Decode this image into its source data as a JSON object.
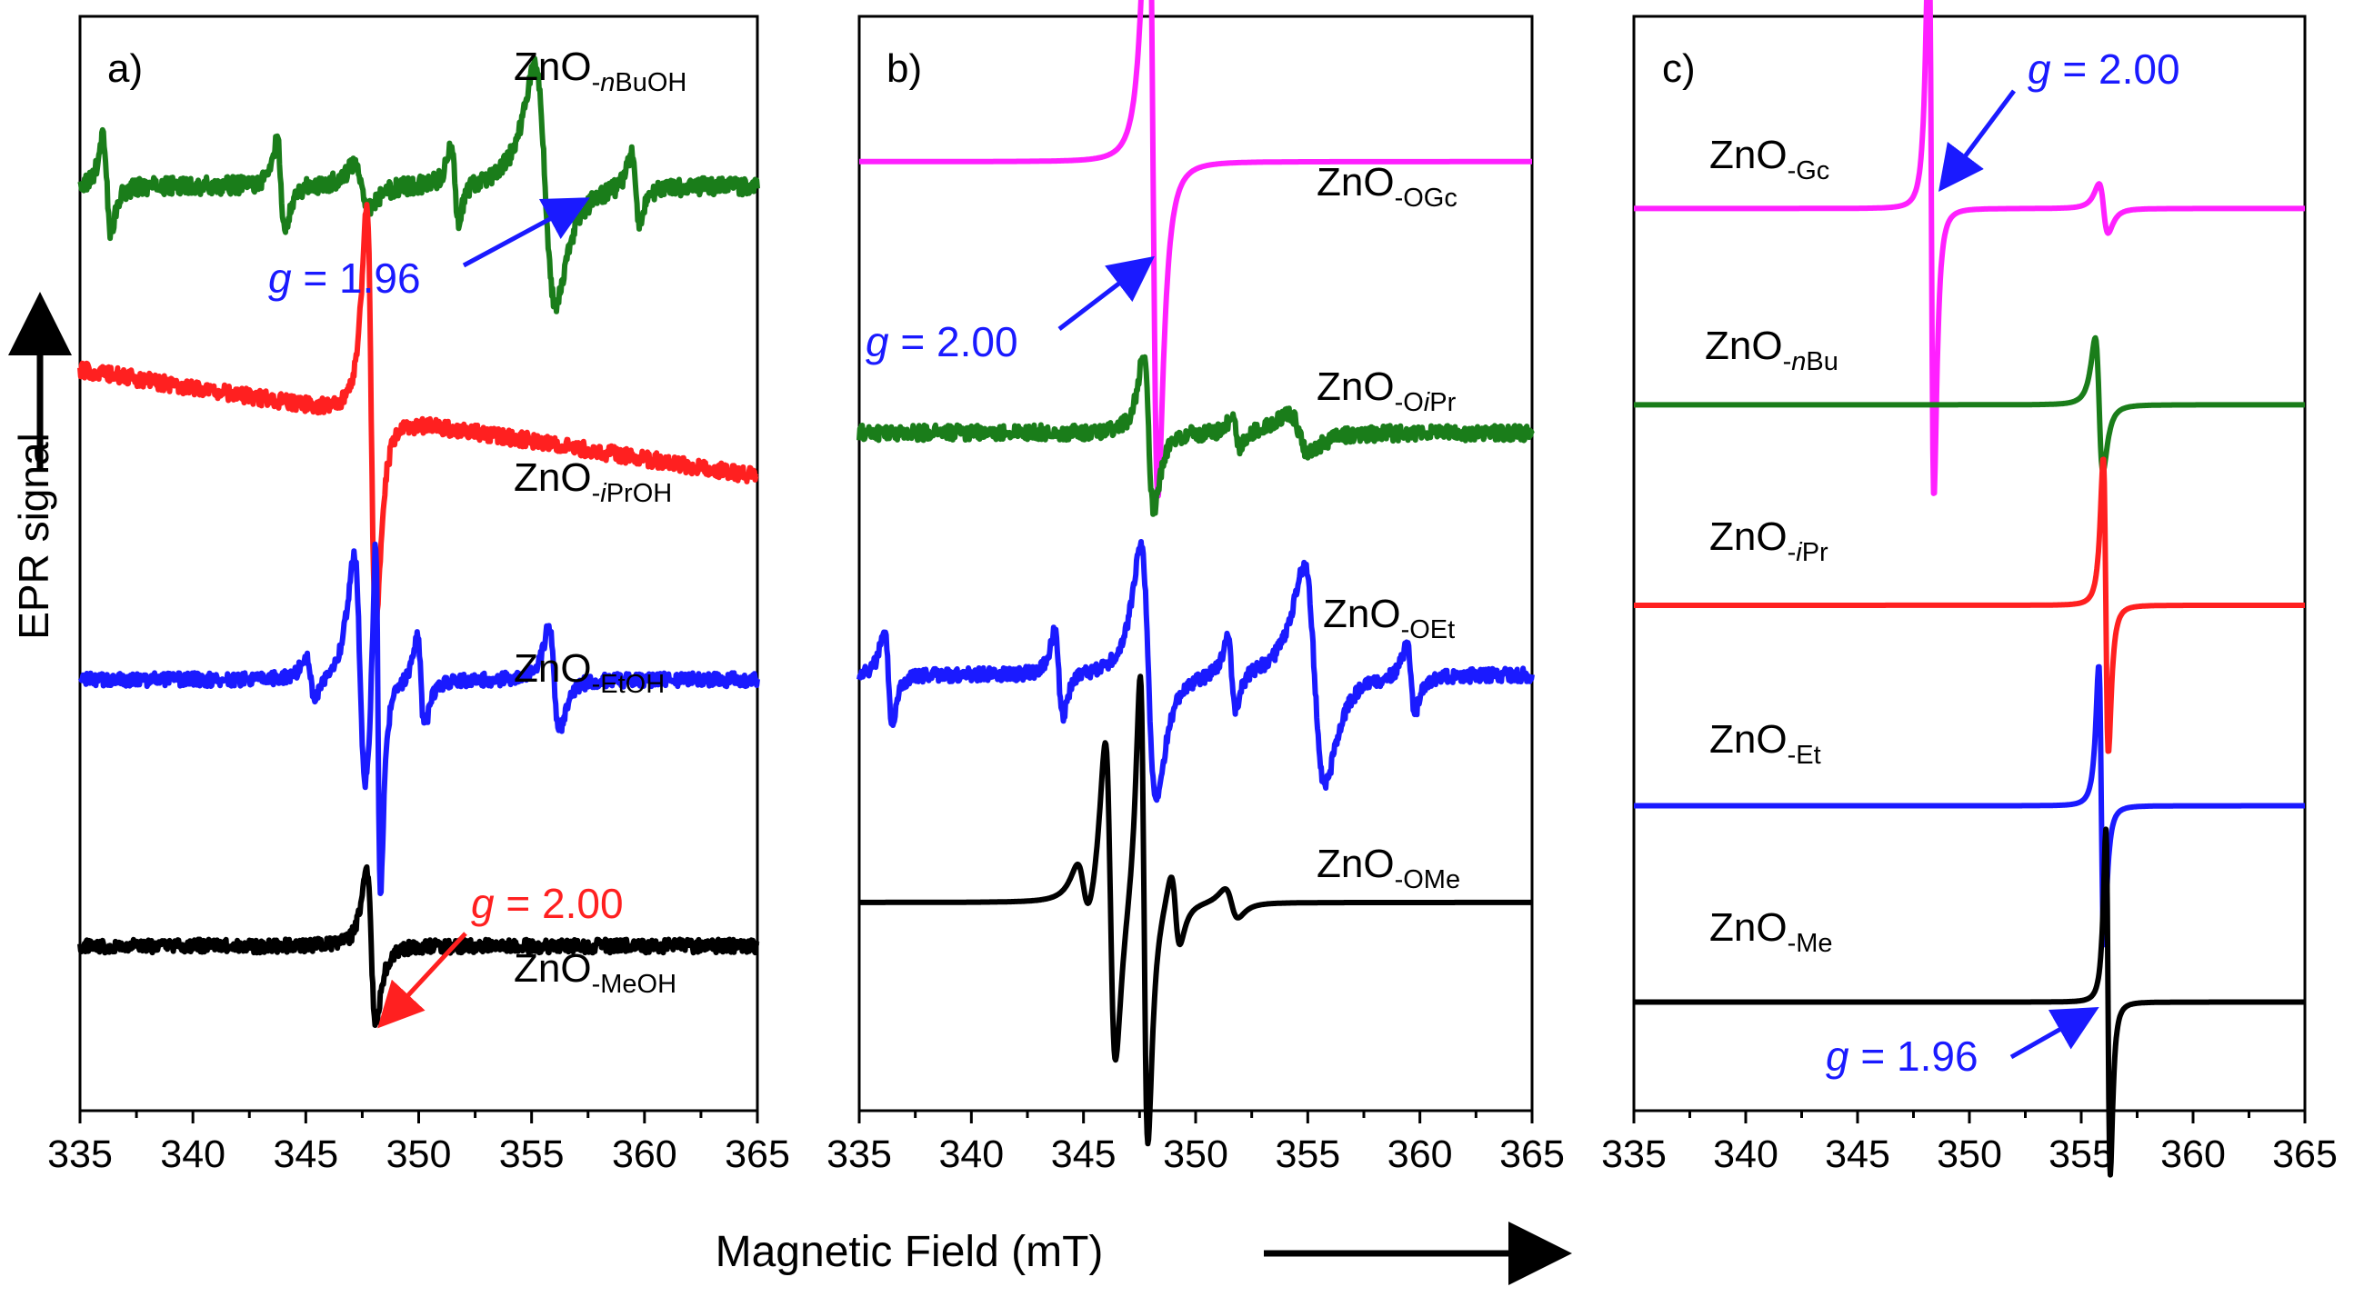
{
  "figure": {
    "ylabel": "EPR signal",
    "xlabel": "Magnetic Field (mT)"
  },
  "chart_data": [
    {
      "type": "line",
      "panel": "a)",
      "xlabel": "Magnetic Field (mT)",
      "ylabel": "EPR signal",
      "xlim": [
        335,
        365
      ],
      "xticks": [
        335,
        340,
        345,
        350,
        355,
        360,
        365
      ],
      "series": [
        {
          "name": "ZnO-nBuOH",
          "label_base": "ZnO",
          "label_sub": "-",
          "label_sub_italic": "n",
          "label_sub_rest": "BuOH",
          "color": "#1a7d1a",
          "baseline": 9.05,
          "noise": 0.09,
          "peaks": [
            {
              "center": 336.2,
              "amp": 0.6,
              "width": 0.3,
              "type": "deriv"
            },
            {
              "center": 343.9,
              "amp": 0.55,
              "width": 0.3,
              "type": "deriv"
            },
            {
              "center": 347.5,
              "amp": 0.25,
              "width": 0.6,
              "type": "deriv"
            },
            {
              "center": 351.6,
              "amp": 0.45,
              "width": 0.3,
              "type": "deriv"
            },
            {
              "center": 355.6,
              "amp": 1.45,
              "width": 0.8,
              "type": "deriv"
            },
            {
              "center": 359.6,
              "amp": 0.45,
              "width": 0.3,
              "type": "deriv"
            }
          ]
        },
        {
          "name": "ZnO-iPrOH",
          "label_base": "ZnO",
          "label_sub": "-",
          "label_sub_italic": "i",
          "label_sub_rest": "PrOH",
          "color": "#ff2020",
          "baseline": 6.6,
          "tilt": -0.55,
          "noise": 0.08,
          "peaks": [
            {
              "center": 347.9,
              "amp": 2.6,
              "width": 0.35,
              "type": "deriv"
            }
          ]
        },
        {
          "name": "ZnO-EtOH",
          "label_base": "ZnO",
          "label_sub": "-",
          "label_sub_italic": "",
          "label_sub_rest": "EtOH",
          "color": "#1a1aff",
          "baseline": 3.95,
          "noise": 0.07,
          "peaks": [
            {
              "center": 345.2,
              "amp": 0.25,
              "width": 0.35,
              "type": "deriv"
            },
            {
              "center": 347.4,
              "amp": 1.5,
              "width": 0.45,
              "type": "deriv"
            },
            {
              "center": 348.2,
              "amp": 2.3,
              "width": 0.2,
              "type": "deriv"
            },
            {
              "center": 350.1,
              "amp": 0.55,
              "width": 0.3,
              "type": "deriv"
            },
            {
              "center": 356.0,
              "amp": 0.65,
              "width": 0.4,
              "type": "deriv"
            }
          ]
        },
        {
          "name": "ZnO-MeOH",
          "label_base": "ZnO",
          "label_sub": "-",
          "label_sub_italic": "",
          "label_sub_rest": "MeOH",
          "color": "#000000",
          "baseline": 1.2,
          "noise": 0.07,
          "peaks": [
            {
              "center": 347.9,
              "amp": 0.95,
              "width": 0.35,
              "type": "deriv"
            }
          ]
        }
      ],
      "annotations": [
        {
          "text_italic": "g",
          "text_rest": " = 1.96",
          "color": "#1a1aff",
          "target": "ZnO-nBuOH",
          "at_x": 355.6
        },
        {
          "text_italic": "g",
          "text_rest": " = 2.00",
          "color": "#ff2020",
          "target": "ZnO-MeOH",
          "at_x": 348.0
        }
      ]
    },
    {
      "type": "line",
      "panel": "b)",
      "xlabel": "Magnetic Field (mT)",
      "xlim": [
        335,
        365
      ],
      "xticks": [
        335,
        340,
        345,
        350,
        355,
        360,
        365
      ],
      "series": [
        {
          "name": "ZnO-OGc",
          "label_base": "ZnO",
          "label_sub": "-",
          "label_sub_italic": "",
          "label_sub_rest": "OGc",
          "color": "#ff20ff",
          "baseline": 9.3,
          "noise": 0.0,
          "peaks": [
            {
              "center": 348.1,
              "amp": 4.1,
              "width": 0.38,
              "type": "deriv"
            }
          ]
        },
        {
          "name": "ZnO-OiPr",
          "label_base": "ZnO",
          "label_sub": "-O",
          "label_sub_italic": "i",
          "label_sub_rest": "Pr",
          "color": "#1a7d1a",
          "baseline": 6.5,
          "noise": 0.08,
          "peaks": [
            {
              "center": 347.9,
              "amp": 0.95,
              "width": 0.4,
              "type": "deriv"
            },
            {
              "center": 351.8,
              "amp": 0.2,
              "width": 0.3,
              "type": "deriv"
            },
            {
              "center": 354.6,
              "amp": 0.25,
              "width": 0.8,
              "type": "deriv"
            }
          ]
        },
        {
          "name": "ZnO-OEt",
          "label_base": "ZnO",
          "label_sub": "-",
          "label_sub_italic": "",
          "label_sub_rest": "OEt",
          "color": "#1a1aff",
          "baseline": 4.0,
          "noise": 0.07,
          "peaks": [
            {
              "center": 336.3,
              "amp": 0.6,
              "width": 0.3,
              "type": "deriv"
            },
            {
              "center": 343.9,
              "amp": 0.55,
              "width": 0.3,
              "type": "deriv"
            },
            {
              "center": 347.9,
              "amp": 1.55,
              "width": 0.6,
              "type": "deriv"
            },
            {
              "center": 351.6,
              "amp": 0.45,
              "width": 0.3,
              "type": "deriv"
            },
            {
              "center": 355.3,
              "amp": 1.35,
              "width": 0.8,
              "type": "deriv"
            },
            {
              "center": 359.6,
              "amp": 0.45,
              "width": 0.3,
              "type": "deriv"
            }
          ]
        },
        {
          "name": "ZnO-OMe",
          "label_base": "ZnO",
          "label_sub": "-",
          "label_sub_italic": "",
          "label_sub_rest": "OMe",
          "color": "#000000",
          "baseline": 1.65,
          "noise": 0.0,
          "peaks": [
            {
              "center": 346.2,
              "amp": 2.0,
              "width": 0.4,
              "type": "deriv"
            },
            {
              "center": 347.7,
              "amp": 2.9,
              "width": 0.3,
              "type": "deriv"
            },
            {
              "center": 349.1,
              "amp": 0.45,
              "width": 0.35,
              "type": "deriv"
            },
            {
              "center": 351.6,
              "amp": 0.18,
              "width": 0.5,
              "type": "deriv"
            },
            {
              "center": 345.0,
              "amp": 0.35,
              "width": 0.5,
              "type": "deriv"
            }
          ]
        }
      ],
      "annotations": [
        {
          "text_italic": "g",
          "text_rest": " = 2.00",
          "color": "#1a1aff",
          "target": "ZnO-OGc",
          "at_x": 348.2
        }
      ]
    },
    {
      "type": "line",
      "panel": "c)",
      "xlabel": "Magnetic Field (mT)",
      "xlim": [
        335,
        365
      ],
      "xticks": [
        335,
        340,
        345,
        350,
        355,
        360,
        365
      ],
      "series": [
        {
          "name": "ZnO-Gc",
          "label_base": "ZnO",
          "label_sub": "-",
          "label_sub_italic": "",
          "label_sub_rest": "Gc",
          "color": "#ff20ff",
          "baseline": 9.5,
          "noise": 0.0,
          "peaks": [
            {
              "center": 348.3,
              "amp": 4.1,
              "width": 0.2,
              "type": "deriv"
            },
            {
              "center": 356.0,
              "amp": 0.35,
              "width": 0.35,
              "type": "deriv"
            }
          ]
        },
        {
          "name": "ZnO-nBu",
          "label_base": "ZnO",
          "label_sub": "-",
          "label_sub_italic": "n",
          "label_sub_rest": "Bu",
          "color": "#1a7d1a",
          "baseline": 7.15,
          "noise": 0.0,
          "peaks": [
            {
              "center": 355.8,
              "amp": 0.95,
              "width": 0.3,
              "type": "deriv"
            }
          ]
        },
        {
          "name": "ZnO-iPr",
          "label_base": "ZnO",
          "label_sub": "-",
          "label_sub_italic": "i",
          "label_sub_rest": "Pr",
          "color": "#ff2020",
          "baseline": 4.75,
          "noise": 0.0,
          "peaks": [
            {
              "center": 356.1,
              "amp": 2.1,
              "width": 0.2,
              "type": "deriv"
            }
          ]
        },
        {
          "name": "ZnO-Et",
          "label_base": "ZnO",
          "label_sub": "-",
          "label_sub_italic": "",
          "label_sub_rest": "Et",
          "color": "#1a1aff",
          "baseline": 2.35,
          "noise": 0.0,
          "peaks": [
            {
              "center": 355.9,
              "amp": 2.0,
              "width": 0.2,
              "type": "deriv"
            }
          ]
        },
        {
          "name": "ZnO-Me",
          "label_base": "ZnO",
          "label_sub": "-",
          "label_sub_italic": "",
          "label_sub_rest": "Me",
          "color": "#000000",
          "baseline": 0.0,
          "noise": 0.0,
          "peaks": [
            {
              "center": 356.2,
              "amp": 2.45,
              "width": 0.17,
              "type": "deriv"
            }
          ]
        }
      ],
      "annotations": [
        {
          "text_italic": "g",
          "text_rest": " = 2.00",
          "color": "#1a1aff",
          "target": "ZnO-Gc",
          "at_x": 348.2
        },
        {
          "text_italic": "g",
          "text_rest": " = 1.96",
          "color": "#1a1aff",
          "target": "ZnO-Me",
          "at_x": 356.0
        }
      ]
    }
  ]
}
